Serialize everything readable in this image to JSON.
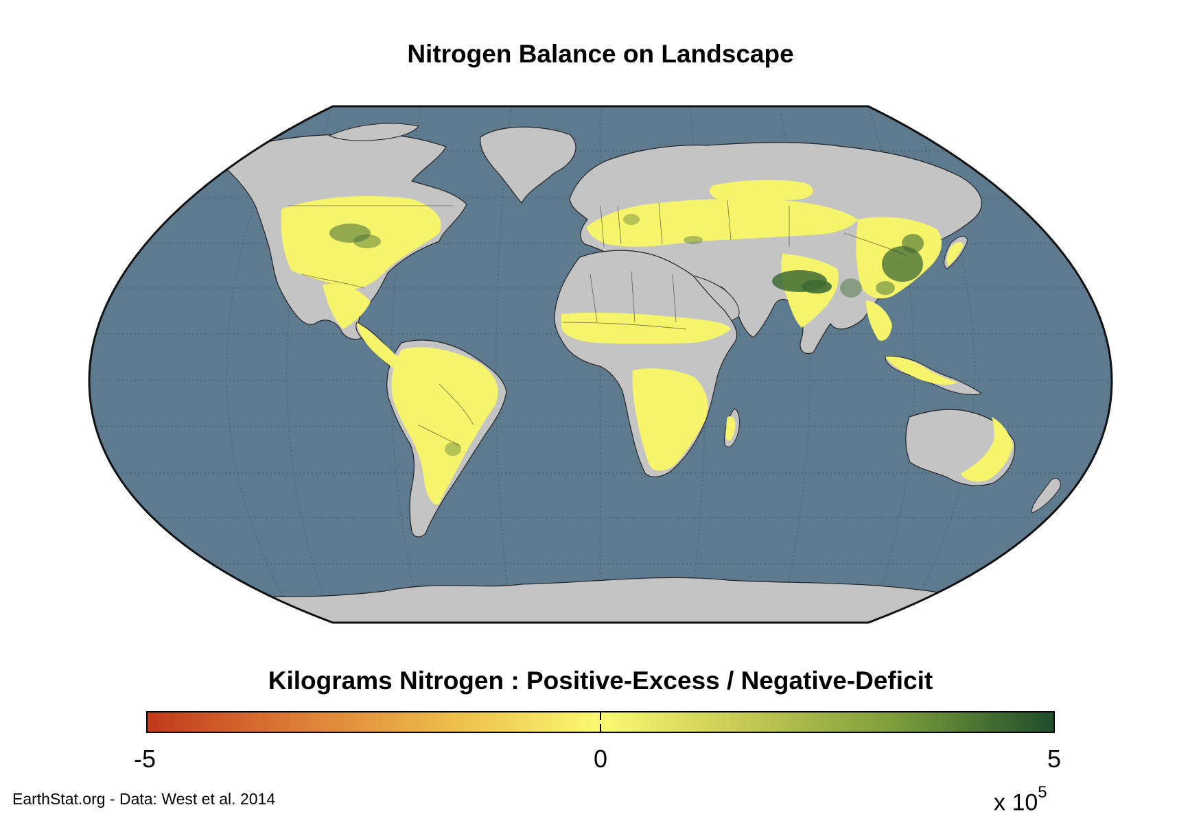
{
  "title": "Nitrogen Balance on Landscape",
  "colorbar": {
    "label": "Kilograms Nitrogen : Positive-Excess / Negative-Deficit",
    "min": -5,
    "max": 5,
    "ticks": [
      "-5",
      "0",
      "5"
    ],
    "exponent_prefix": "x 10",
    "exponent_power": "5",
    "colors": [
      "#c0391b",
      "#dc7a36",
      "#ecbb4a",
      "#fbfa72",
      "#c5c954",
      "#7a9b3a",
      "#1e4d2b"
    ]
  },
  "credit": "EarthStat.org - Data: West et al. 2014",
  "map": {
    "projection": "robinson",
    "ocean_color": "#5e7a8e",
    "land_color": "#c4c4c4",
    "cropland_color": "#f6f46a",
    "high_excess_color": "#3f6b35"
  }
}
